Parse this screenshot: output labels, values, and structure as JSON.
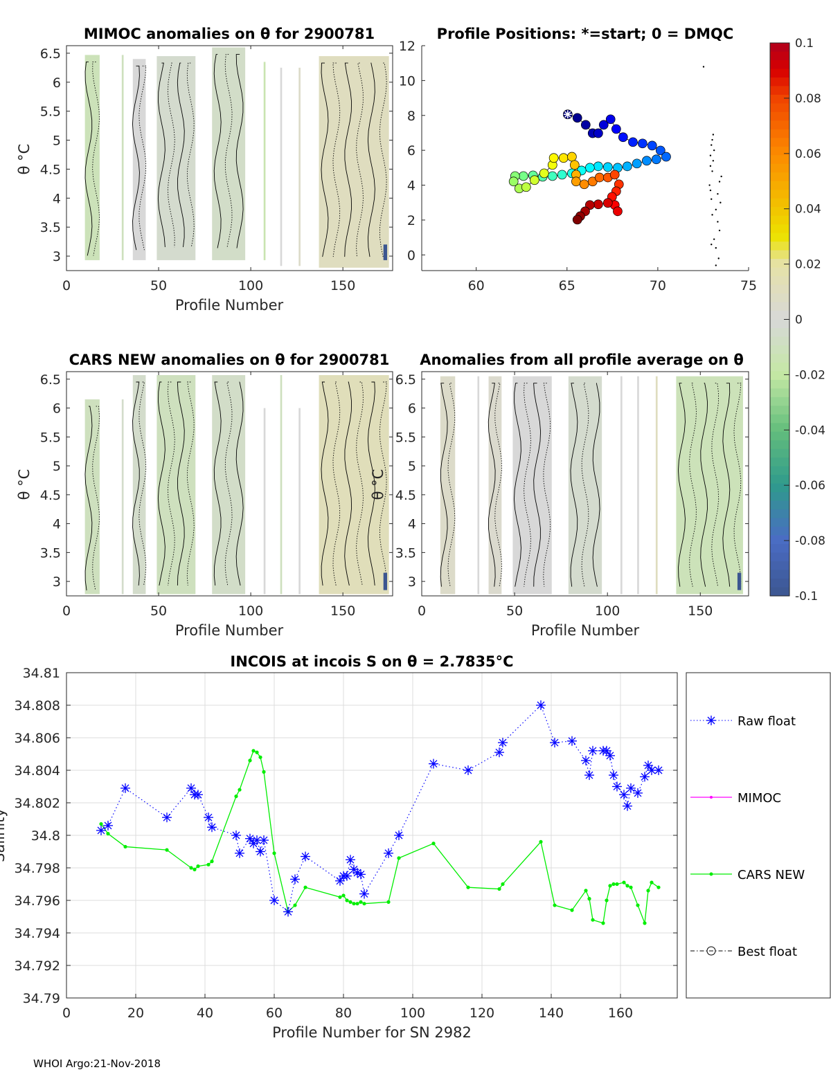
{
  "figure": {
    "footer": "WHOI Argo:21-Nov-2018"
  },
  "chart_data": [
    {
      "type": "heatmap",
      "title": "MIMOC anomalies on θ  for 2900781",
      "xlabel": "Profile Number",
      "ylabel": "θ °C",
      "xlim": [
        0,
        177
      ],
      "ylim": [
        2.75,
        6.63
      ],
      "xticks": [
        "0",
        "50",
        "100",
        "150"
      ],
      "xtick_values": [
        0,
        50,
        100,
        150
      ],
      "yticks": [
        "3",
        "3.5",
        "4",
        "4.5",
        "5",
        "5.5",
        "6",
        "6.5"
      ],
      "ytick_values": [
        3,
        3.5,
        4,
        4.5,
        5,
        5.5,
        6,
        6.5
      ],
      "columns": [
        {
          "x": [
            10,
            18
          ],
          "theta": [
            2.93,
            6.47
          ],
          "anomaly": -0.012
        },
        {
          "x": [
            30,
            31
          ],
          "theta": [
            2.93,
            6.47
          ],
          "anomaly": -0.01
        },
        {
          "x": [
            36,
            43
          ],
          "theta": [
            2.93,
            6.4
          ],
          "anomaly": 0.0
        },
        {
          "x": [
            49,
            70
          ],
          "theta": [
            2.93,
            6.45
          ],
          "anomaly": -0.004
        },
        {
          "x": [
            79,
            97
          ],
          "theta": [
            2.93,
            6.6
          ],
          "anomaly": -0.006
        },
        {
          "x": [
            107,
            108
          ],
          "theta": [
            2.93,
            6.35
          ],
          "anomaly": -0.015
        },
        {
          "x": [
            116,
            117
          ],
          "theta": [
            2.83,
            6.25
          ],
          "anomaly": 0.0
        },
        {
          "x": [
            126,
            127
          ],
          "theta": [
            2.83,
            6.25
          ],
          "anomaly": 0.006
        },
        {
          "x": [
            137,
            175
          ],
          "theta": [
            2.8,
            6.45
          ],
          "anomaly": 0.01
        },
        {
          "x": [
            172,
            174
          ],
          "theta": [
            2.93,
            3.2
          ],
          "anomaly": -0.1
        }
      ]
    },
    {
      "type": "scatter",
      "title": "Profile Positions: *=start; 0 = DMQC",
      "xlim": [
        57,
        75
      ],
      "ylim": [
        -0.9,
        12
      ],
      "xticks": [
        "60",
        "65",
        "70",
        "75"
      ],
      "xtick_values": [
        60,
        65,
        70,
        75
      ],
      "yticks": [
        "0",
        "2",
        "4",
        "6",
        "8",
        "10",
        "12"
      ],
      "ytick_values": [
        0,
        2,
        4,
        6,
        8,
        10,
        12
      ],
      "track_lon_lat": [
        [
          65.04,
          8.06
        ],
        [
          65.57,
          7.86
        ],
        [
          66.03,
          7.46
        ],
        [
          66.41,
          6.98
        ],
        [
          66.72,
          6.98
        ],
        [
          67.02,
          7.46
        ],
        [
          67.4,
          7.78
        ],
        [
          67.71,
          7.22
        ],
        [
          68.09,
          6.75
        ],
        [
          68.63,
          6.47
        ],
        [
          69.16,
          6.39
        ],
        [
          69.69,
          6.27
        ],
        [
          70.15,
          5.99
        ],
        [
          70.46,
          5.63
        ],
        [
          69.92,
          5.48
        ],
        [
          69.39,
          5.4
        ],
        [
          68.85,
          5.24
        ],
        [
          68.32,
          5.08
        ],
        [
          67.79,
          5.0
        ],
        [
          67.25,
          5.04
        ],
        [
          66.72,
          5.08
        ],
        [
          66.26,
          5.0
        ],
        [
          65.8,
          4.84
        ],
        [
          65.27,
          4.68
        ],
        [
          64.73,
          4.6
        ],
        [
          64.2,
          4.52
        ],
        [
          63.66,
          4.48
        ],
        [
          63.13,
          4.56
        ],
        [
          62.6,
          4.52
        ],
        [
          62.14,
          4.52
        ],
        [
          62.06,
          4.21
        ],
        [
          62.37,
          3.81
        ],
        [
          62.75,
          3.89
        ],
        [
          63.21,
          4.29
        ],
        [
          63.74,
          4.68
        ],
        [
          64.2,
          5.16
        ],
        [
          64.27,
          5.56
        ],
        [
          64.81,
          5.56
        ],
        [
          65.27,
          5.63
        ],
        [
          65.42,
          5.16
        ],
        [
          65.5,
          4.6
        ],
        [
          65.5,
          4.21
        ],
        [
          65.95,
          4.05
        ],
        [
          66.41,
          4.21
        ],
        [
          66.79,
          4.44
        ],
        [
          67.25,
          4.44
        ],
        [
          67.63,
          4.6
        ],
        [
          67.86,
          4.05
        ],
        [
          67.71,
          3.65
        ],
        [
          67.48,
          3.33
        ],
        [
          67.63,
          2.86
        ],
        [
          67.79,
          2.5
        ],
        [
          67.25,
          2.98
        ],
        [
          66.72,
          2.9
        ],
        [
          66.26,
          2.86
        ],
        [
          66.0,
          2.5
        ],
        [
          65.73,
          2.22
        ],
        [
          65.57,
          2.02
        ]
      ],
      "other_points_lon_lat": [
        [
          72.52,
          10.79
        ],
        [
          73.05,
          6.9
        ],
        [
          73.0,
          6.6
        ],
        [
          72.95,
          6.3
        ],
        [
          73.1,
          6.0
        ],
        [
          72.9,
          5.7
        ],
        [
          73.05,
          5.4
        ],
        [
          72.9,
          5.1
        ],
        [
          73.0,
          4.8
        ],
        [
          73.5,
          4.5
        ],
        [
          73.4,
          4.2
        ],
        [
          72.85,
          4.0
        ],
        [
          72.9,
          3.7
        ],
        [
          73.3,
          3.5
        ],
        [
          72.95,
          3.2
        ],
        [
          73.45,
          3.0
        ],
        [
          73.2,
          2.6
        ],
        [
          73.0,
          2.3
        ],
        [
          73.3,
          1.9
        ],
        [
          73.4,
          1.4
        ],
        [
          73.1,
          0.9
        ],
        [
          72.95,
          0.6
        ],
        [
          73.2,
          0.4
        ],
        [
          73.35,
          -0.2
        ],
        [
          73.2,
          -0.6
        ]
      ]
    },
    {
      "type": "heatmap",
      "title": "CARS NEW anomalies on θ for 2900781",
      "xlabel": "Profile Number",
      "ylabel": "θ °C",
      "xlim": [
        0,
        177
      ],
      "ylim": [
        2.75,
        6.63
      ],
      "xticks": [
        "0",
        "50",
        "100",
        "150"
      ],
      "xtick_values": [
        0,
        50,
        100,
        150
      ],
      "yticks": [
        "3",
        "3.5",
        "4",
        "4.5",
        "5",
        "5.5",
        "6",
        "6.5"
      ],
      "ytick_values": [
        3,
        3.5,
        4,
        4.5,
        5,
        5.5,
        6,
        6.5
      ],
      "columns": [
        {
          "x": [
            10,
            18
          ],
          "theta": [
            2.78,
            6.15
          ],
          "anomaly": -0.01
        },
        {
          "x": [
            30,
            31
          ],
          "theta": [
            2.78,
            6.15
          ],
          "anomaly": -0.005
        },
        {
          "x": [
            36,
            43
          ],
          "theta": [
            2.78,
            6.57
          ],
          "anomaly": -0.005
        },
        {
          "x": [
            49,
            70
          ],
          "theta": [
            2.78,
            6.57
          ],
          "anomaly": -0.01
        },
        {
          "x": [
            79,
            97
          ],
          "theta": [
            2.78,
            6.57
          ],
          "anomaly": -0.006
        },
        {
          "x": [
            107,
            108
          ],
          "theta": [
            2.78,
            6.0
          ],
          "anomaly": 0.0
        },
        {
          "x": [
            116,
            117
          ],
          "theta": [
            2.78,
            6.57
          ],
          "anomaly": -0.01
        },
        {
          "x": [
            126,
            127
          ],
          "theta": [
            2.78,
            6.0
          ],
          "anomaly": 0.0
        },
        {
          "x": [
            137,
            175
          ],
          "theta": [
            2.78,
            6.57
          ],
          "anomaly": 0.012
        },
        {
          "x": [
            172,
            174
          ],
          "theta": [
            2.85,
            3.15
          ],
          "anomaly": -0.1
        }
      ]
    },
    {
      "type": "heatmap",
      "title": "Anomalies from all profile average on θ",
      "xlabel": "Profile Number",
      "ylabel": "θ °C",
      "xlim": [
        0,
        176
      ],
      "ylim": [
        2.75,
        6.63
      ],
      "xticks": [
        "0",
        "50",
        "100",
        "150"
      ],
      "xtick_values": [
        0,
        50,
        100,
        150
      ],
      "yticks": [
        "3",
        "3.5",
        "4",
        "4.5",
        "5",
        "5.5",
        "6",
        "6.5"
      ],
      "ytick_values": [
        3,
        3.5,
        4,
        4.5,
        5,
        5.5,
        6,
        6.5
      ],
      "columns": [
        {
          "x": [
            10,
            18
          ],
          "theta": [
            2.78,
            6.55
          ],
          "anomaly": 0.006
        },
        {
          "x": [
            30,
            31
          ],
          "theta": [
            2.78,
            6.55
          ],
          "anomaly": 0.0
        },
        {
          "x": [
            36,
            43
          ],
          "theta": [
            2.78,
            6.55
          ],
          "anomaly": 0.004
        },
        {
          "x": [
            49,
            70
          ],
          "theta": [
            2.78,
            6.55
          ],
          "anomaly": 0.0
        },
        {
          "x": [
            79,
            97
          ],
          "theta": [
            2.78,
            6.55
          ],
          "anomaly": -0.004
        },
        {
          "x": [
            107,
            108
          ],
          "theta": [
            2.78,
            6.55
          ],
          "anomaly": 0.0
        },
        {
          "x": [
            116,
            117
          ],
          "theta": [
            2.78,
            6.55
          ],
          "anomaly": 0.0
        },
        {
          "x": [
            126,
            127
          ],
          "theta": [
            2.78,
            6.55
          ],
          "anomaly": 0.01
        },
        {
          "x": [
            137,
            173
          ],
          "theta": [
            2.78,
            6.55
          ],
          "anomaly": -0.012
        },
        {
          "x": [
            170,
            172
          ],
          "theta": [
            2.85,
            3.15
          ],
          "anomaly": -0.1
        }
      ]
    },
    {
      "type": "colorbar",
      "range": [
        -0.1,
        0.1
      ],
      "ticks": [
        "0.1",
        "0.08",
        "0.06",
        "0.04",
        "0.02",
        "0",
        "-0.02",
        "-0.04",
        "-0.06",
        "-0.08",
        "-0.1"
      ],
      "tick_values": [
        0.1,
        0.08,
        0.06,
        0.04,
        0.02,
        0,
        -0.02,
        -0.04,
        -0.06,
        -0.08,
        -0.1
      ],
      "stops": [
        [
          -0.1,
          "#3c5690"
        ],
        [
          -0.08,
          "#4a6cc4"
        ],
        [
          -0.06,
          "#2f9a8c"
        ],
        [
          -0.04,
          "#64be7c"
        ],
        [
          -0.02,
          "#c4e8a4"
        ],
        [
          0,
          "#d8d8d8"
        ],
        [
          0.02,
          "#e6e2a6"
        ],
        [
          0.03,
          "#ece200"
        ],
        [
          0.04,
          "#f2c400"
        ],
        [
          0.06,
          "#fc8a00"
        ],
        [
          0.08,
          "#f04400"
        ],
        [
          0.09,
          "#d80000"
        ],
        [
          0.1,
          "#b0001c"
        ]
      ]
    },
    {
      "type": "line",
      "title": "INCOIS at incois S on θ = 2.7835°C",
      "xlabel": "Profile Number for SN 2982",
      "ylabel": "Salinity",
      "xlim": [
        0,
        176.4
      ],
      "ylim": [
        34.79,
        34.81
      ],
      "grid": true,
      "xticks": [
        "0",
        "20",
        "40",
        "60",
        "80",
        "100",
        "120",
        "140",
        "160"
      ],
      "xtick_values": [
        0,
        20,
        40,
        60,
        80,
        100,
        120,
        140,
        160
      ],
      "yticks": [
        "34.79",
        "34.792",
        "34.794",
        "34.796",
        "34.798",
        "34.8",
        "34.802",
        "34.804",
        "34.806",
        "34.808",
        "34.81"
      ],
      "ytick_values": [
        34.79,
        34.792,
        34.794,
        34.796,
        34.798,
        34.8,
        34.802,
        34.804,
        34.806,
        34.808,
        34.81
      ],
      "legend_position": "outside-right",
      "legend": [
        "Raw float",
        "MIMOC",
        "CARS NEW",
        "Best float"
      ],
      "colors": {
        "raw": "#0000ff",
        "mimoc": "#ff00ff",
        "cars": "#00ee00",
        "best": "#000000"
      },
      "x": [
        10,
        12,
        17,
        29,
        36,
        37,
        38,
        41,
        42,
        49,
        50,
        53,
        54,
        55,
        56,
        57,
        60,
        64,
        66,
        69,
        79,
        80,
        81,
        82,
        83,
        84,
        85,
        86,
        93,
        96,
        106,
        116,
        125,
        126,
        137,
        141,
        146,
        150,
        151,
        152,
        155,
        156,
        157,
        158,
        159,
        161,
        162,
        163,
        165,
        167,
        168,
        169,
        171
      ],
      "series": [
        {
          "name": "Raw float",
          "values": [
            34.8003,
            34.8006,
            34.8029,
            34.8011,
            34.8029,
            34.8025,
            34.8025,
            34.8011,
            34.8005,
            34.8,
            34.7989,
            34.7998,
            34.7995,
            34.7997,
            34.799,
            34.7997,
            34.796,
            34.7953,
            34.7973,
            34.7987,
            34.7972,
            34.7975,
            34.7975,
            34.7985,
            34.7979,
            34.7977,
            34.7976,
            34.7964,
            34.7989,
            34.8,
            34.8044,
            34.804,
            34.8051,
            34.8057,
            34.808,
            34.8057,
            34.8058,
            34.8046,
            34.8037,
            34.8052,
            34.8052,
            34.8052,
            34.8049,
            34.8037,
            34.803,
            34.8025,
            34.8018,
            34.8029,
            34.8026,
            34.8036,
            34.8043,
            34.804,
            34.804
          ]
        },
        {
          "name": "CARS NEW",
          "values": [
            34.8007,
            34.8001,
            34.7993,
            34.7991,
            34.798,
            34.7979,
            34.7981,
            34.7982,
            34.7984,
            34.8024,
            34.8028,
            34.8046,
            34.8052,
            34.8051,
            34.8048,
            34.8039,
            34.7989,
            34.7953,
            34.7957,
            34.7968,
            34.7962,
            34.7963,
            34.796,
            34.7959,
            34.7958,
            34.7958,
            34.7959,
            34.7958,
            34.7959,
            34.7986,
            34.7995,
            34.7968,
            34.7967,
            34.797,
            34.7996,
            34.7957,
            34.7954,
            34.7966,
            34.7961,
            34.7948,
            34.7946,
            34.796,
            34.7969,
            34.797,
            34.797,
            34.7971,
            34.7969,
            34.7968,
            34.7957,
            34.7946,
            34.7966,
            34.7971,
            34.7968
          ]
        }
      ]
    }
  ]
}
